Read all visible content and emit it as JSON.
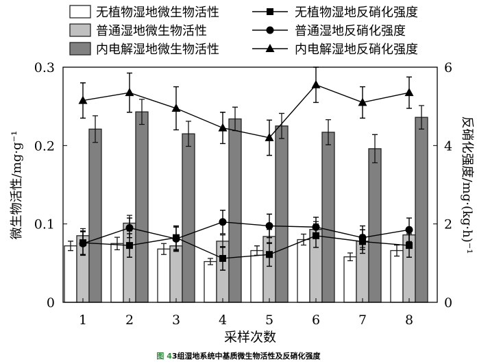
{
  "chart_data": {
    "type": "bar",
    "categories": [
      "1",
      "2",
      "3",
      "4",
      "5",
      "6",
      "7",
      "8"
    ],
    "xlabel": "采样次数",
    "ylabel": "微生物活性/mg·g⁻¹",
    "y2label": "反硝化强度/mg·(kg·h)⁻¹",
    "ylim": [
      0,
      0.3
    ],
    "y2lim": [
      0,
      6
    ],
    "yticks": [
      "0",
      "0.1",
      "0.2",
      "0.3"
    ],
    "y2ticks": [
      "0",
      "2",
      "4",
      "6"
    ],
    "bar_series": [
      {
        "name": "无植物湿地微生物活性",
        "color": "#ffffff",
        "values": [
          0.072,
          0.075,
          0.068,
          0.052,
          0.066,
          0.08,
          0.058,
          0.066
        ],
        "err": [
          0.006,
          0.008,
          0.007,
          0.004,
          0.006,
          0.007,
          0.005,
          0.007
        ]
      },
      {
        "name": "普通湿地微生物活性",
        "color": "#c0c0c0",
        "values": [
          0.085,
          0.101,
          0.072,
          0.078,
          0.084,
          0.093,
          0.078,
          0.086
        ],
        "err": [
          0.009,
          0.01,
          0.007,
          0.008,
          0.009,
          0.01,
          0.008,
          0.009
        ]
      },
      {
        "name": "内电解湿地微生物活性",
        "color": "#808080",
        "values": [
          0.221,
          0.243,
          0.215,
          0.234,
          0.225,
          0.217,
          0.196,
          0.236
        ],
        "err": [
          0.017,
          0.016,
          0.016,
          0.015,
          0.016,
          0.016,
          0.018,
          0.015
        ]
      }
    ],
    "line_series": [
      {
        "name": "无植物湿地反硝化强度",
        "marker": "square",
        "values": [
          1.52,
          1.45,
          1.65,
          1.12,
          1.22,
          1.7,
          1.55,
          1.45
        ],
        "err": [
          0.3,
          0.3,
          0.3,
          0.3,
          0.3,
          0.3,
          0.3,
          0.3
        ]
      },
      {
        "name": "普通湿地反硝化强度",
        "marker": "circle",
        "values": [
          1.5,
          1.9,
          1.62,
          2.05,
          1.95,
          1.92,
          1.65,
          1.85
        ],
        "err": [
          0.3,
          0.25,
          0.3,
          0.3,
          0.3,
          0.25,
          0.3,
          0.3
        ]
      },
      {
        "name": "内电解湿地反硝化强度",
        "marker": "triangle",
        "values": [
          5.15,
          5.35,
          4.95,
          4.45,
          4.2,
          5.55,
          5.1,
          5.35
        ],
        "err": [
          0.45,
          0.5,
          0.55,
          0.4,
          0.45,
          0.45,
          0.4,
          0.4
        ]
      }
    ]
  },
  "caption": {
    "figure": "图 4",
    "text": "3组湿地系统中基质微生物活性及反硝化强度"
  }
}
